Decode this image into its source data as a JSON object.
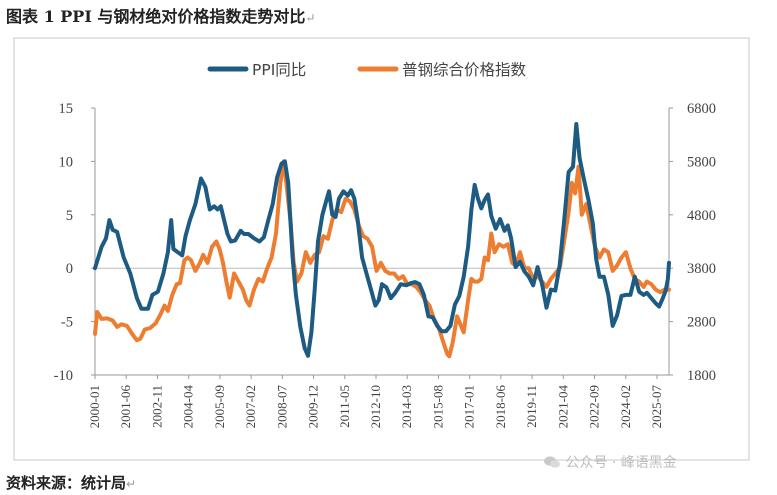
{
  "figure": {
    "title": "图表 1 PPI 与钢材绝对价格指数走势对比",
    "source": "资料来源：统计局",
    "return_mark": "↵",
    "watermark": "公众号 · 峰语黑金"
  },
  "colors": {
    "ppi": "#1d5b82",
    "steel": "#ed7d31",
    "frame": "#c8c8c8"
  },
  "chart_data": {
    "type": "line",
    "legend_position": "top",
    "grid": false,
    "x_tick_labels": [
      "2000-01",
      "2001-06",
      "2002-11",
      "2004-04",
      "2005-09",
      "2007-02",
      "2008-07",
      "2009-12",
      "2011-05",
      "2012-10",
      "2014-03",
      "2015-08",
      "2017-01",
      "2018-06",
      "2019-11",
      "2021-04",
      "2022-09",
      "2024-02",
      "2025-07"
    ],
    "x_range": [
      2000.0,
      2026.0
    ],
    "y_left": {
      "range": [
        -10,
        15
      ],
      "ticks": [
        "15",
        "10",
        "5",
        "0",
        "-5",
        "-10"
      ]
    },
    "y_right": {
      "range": [
        1800,
        6800
      ],
      "ticks": [
        "6800",
        "5800",
        "4800",
        "3800",
        "2800",
        "1800"
      ]
    },
    "series": [
      {
        "name": "PPI同比",
        "axis": "left",
        "points": [
          [
            2000.0,
            0.0
          ],
          [
            2000.3,
            2.0
          ],
          [
            2000.5,
            2.8
          ],
          [
            2000.65,
            4.5
          ],
          [
            2000.8,
            3.6
          ],
          [
            2001.0,
            3.4
          ],
          [
            2001.3,
            1.0
          ],
          [
            2001.6,
            -0.5
          ],
          [
            2001.9,
            -2.8
          ],
          [
            2002.1,
            -3.8
          ],
          [
            2002.4,
            -3.8
          ],
          [
            2002.6,
            -2.5
          ],
          [
            2002.85,
            -2.2
          ],
          [
            2003.1,
            -0.5
          ],
          [
            2003.3,
            1.5
          ],
          [
            2003.45,
            4.5
          ],
          [
            2003.55,
            1.8
          ],
          [
            2003.75,
            1.5
          ],
          [
            2003.95,
            1.2
          ],
          [
            2004.1,
            3.0
          ],
          [
            2004.3,
            4.5
          ],
          [
            2004.55,
            6.0
          ],
          [
            2004.8,
            8.4
          ],
          [
            2005.0,
            7.6
          ],
          [
            2005.2,
            5.5
          ],
          [
            2005.4,
            5.8
          ],
          [
            2005.55,
            5.5
          ],
          [
            2005.7,
            5.8
          ],
          [
            2005.85,
            4.5
          ],
          [
            2006.0,
            3.2
          ],
          [
            2006.15,
            2.5
          ],
          [
            2006.35,
            2.6
          ],
          [
            2006.6,
            3.5
          ],
          [
            2006.75,
            3.2
          ],
          [
            2006.95,
            3.2
          ],
          [
            2007.2,
            2.8
          ],
          [
            2007.45,
            2.5
          ],
          [
            2007.65,
            2.9
          ],
          [
            2007.85,
            4.5
          ],
          [
            2008.05,
            6.0
          ],
          [
            2008.25,
            8.5
          ],
          [
            2008.45,
            9.8
          ],
          [
            2008.6,
            10.0
          ],
          [
            2008.75,
            8.0
          ],
          [
            2008.85,
            4.5
          ],
          [
            2008.95,
            1.0
          ],
          [
            2009.1,
            -2.5
          ],
          [
            2009.3,
            -5.5
          ],
          [
            2009.5,
            -7.5
          ],
          [
            2009.65,
            -8.2
          ],
          [
            2009.8,
            -6.0
          ],
          [
            2009.95,
            -2.0
          ],
          [
            2010.1,
            2.5
          ],
          [
            2010.3,
            5.0
          ],
          [
            2010.5,
            6.5
          ],
          [
            2010.6,
            7.2
          ],
          [
            2010.75,
            5.0
          ],
          [
            2010.9,
            4.8
          ],
          [
            2011.05,
            6.5
          ],
          [
            2011.25,
            7.2
          ],
          [
            2011.45,
            6.8
          ],
          [
            2011.6,
            7.3
          ],
          [
            2011.75,
            6.5
          ],
          [
            2011.9,
            4.5
          ],
          [
            2012.1,
            1.0
          ],
          [
            2012.3,
            -0.5
          ],
          [
            2012.5,
            -2.0
          ],
          [
            2012.7,
            -3.5
          ],
          [
            2012.85,
            -3.0
          ],
          [
            2013.0,
            -1.5
          ],
          [
            2013.2,
            -1.8
          ],
          [
            2013.4,
            -2.8
          ],
          [
            2013.6,
            -2.3
          ],
          [
            2013.85,
            -1.5
          ],
          [
            2014.1,
            -1.6
          ],
          [
            2014.3,
            -1.4
          ],
          [
            2014.5,
            -1.3
          ],
          [
            2014.7,
            -1.5
          ],
          [
            2014.9,
            -2.5
          ],
          [
            2015.1,
            -4.5
          ],
          [
            2015.3,
            -4.6
          ],
          [
            2015.5,
            -5.4
          ],
          [
            2015.7,
            -5.9
          ],
          [
            2015.9,
            -5.9
          ],
          [
            2016.1,
            -5.4
          ],
          [
            2016.3,
            -3.4
          ],
          [
            2016.5,
            -2.6
          ],
          [
            2016.7,
            -0.8
          ],
          [
            2016.9,
            2.0
          ],
          [
            2017.05,
            5.5
          ],
          [
            2017.2,
            7.8
          ],
          [
            2017.35,
            6.5
          ],
          [
            2017.5,
            5.6
          ],
          [
            2017.65,
            6.4
          ],
          [
            2017.8,
            6.9
          ],
          [
            2017.95,
            4.9
          ],
          [
            2018.15,
            3.7
          ],
          [
            2018.35,
            4.6
          ],
          [
            2018.55,
            3.5
          ],
          [
            2018.7,
            4.0
          ],
          [
            2018.85,
            2.8
          ],
          [
            2019.05,
            0.1
          ],
          [
            2019.25,
            0.6
          ],
          [
            2019.45,
            -0.3
          ],
          [
            2019.65,
            -0.8
          ],
          [
            2019.85,
            -1.6
          ],
          [
            2020.05,
            0.1
          ],
          [
            2020.25,
            -1.5
          ],
          [
            2020.45,
            -3.7
          ],
          [
            2020.65,
            -2.0
          ],
          [
            2020.85,
            -2.1
          ],
          [
            2021.05,
            0.3
          ],
          [
            2021.25,
            4.4
          ],
          [
            2021.45,
            9.0
          ],
          [
            2021.65,
            9.5
          ],
          [
            2021.8,
            13.5
          ],
          [
            2021.95,
            10.3
          ],
          [
            2022.15,
            8.3
          ],
          [
            2022.35,
            6.4
          ],
          [
            2022.55,
            4.2
          ],
          [
            2022.7,
            0.9
          ],
          [
            2022.85,
            -0.8
          ],
          [
            2023.05,
            -0.8
          ],
          [
            2023.25,
            -2.5
          ],
          [
            2023.45,
            -5.4
          ],
          [
            2023.65,
            -4.4
          ],
          [
            2023.85,
            -2.6
          ],
          [
            2024.05,
            -2.5
          ],
          [
            2024.25,
            -2.5
          ],
          [
            2024.45,
            -0.8
          ],
          [
            2024.65,
            -2.2
          ],
          [
            2024.85,
            -2.5
          ],
          [
            2025.0,
            -2.3
          ],
          [
            2025.2,
            -2.8
          ],
          [
            2025.4,
            -3.3
          ],
          [
            2025.55,
            -3.6
          ],
          [
            2025.7,
            -2.9
          ],
          [
            2025.85,
            -2.1
          ],
          [
            2025.95,
            -1.0
          ],
          [
            2026.0,
            0.5
          ]
        ]
      },
      {
        "name": "普钢综合价格指数",
        "axis": "right",
        "points": [
          [
            2000.0,
            2570
          ],
          [
            2000.1,
            2980
          ],
          [
            2000.3,
            2850
          ],
          [
            2000.55,
            2860
          ],
          [
            2000.8,
            2820
          ],
          [
            2001.0,
            2700
          ],
          [
            2001.2,
            2750
          ],
          [
            2001.45,
            2720
          ],
          [
            2001.7,
            2560
          ],
          [
            2001.9,
            2450
          ],
          [
            2002.05,
            2480
          ],
          [
            2002.25,
            2650
          ],
          [
            2002.5,
            2680
          ],
          [
            2002.75,
            2770
          ],
          [
            2002.95,
            2920
          ],
          [
            2003.15,
            3100
          ],
          [
            2003.3,
            3000
          ],
          [
            2003.5,
            3300
          ],
          [
            2003.7,
            3500
          ],
          [
            2003.85,
            3520
          ],
          [
            2004.05,
            3950
          ],
          [
            2004.2,
            4000
          ],
          [
            2004.35,
            3950
          ],
          [
            2004.55,
            3750
          ],
          [
            2004.75,
            3900
          ],
          [
            2004.9,
            4050
          ],
          [
            2005.1,
            3900
          ],
          [
            2005.3,
            4200
          ],
          [
            2005.5,
            4300
          ],
          [
            2005.65,
            4150
          ],
          [
            2005.8,
            3900
          ],
          [
            2005.95,
            3550
          ],
          [
            2006.1,
            3250
          ],
          [
            2006.3,
            3700
          ],
          [
            2006.5,
            3550
          ],
          [
            2006.7,
            3400
          ],
          [
            2006.85,
            3200
          ],
          [
            2007.0,
            3100
          ],
          [
            2007.2,
            3400
          ],
          [
            2007.4,
            3600
          ],
          [
            2007.6,
            3550
          ],
          [
            2007.8,
            3800
          ],
          [
            2008.0,
            4000
          ],
          [
            2008.2,
            4450
          ],
          [
            2008.4,
            5400
          ],
          [
            2008.55,
            5800
          ],
          [
            2008.65,
            5450
          ],
          [
            2008.85,
            4700
          ],
          [
            2009.0,
            3900
          ],
          [
            2009.15,
            3550
          ],
          [
            2009.35,
            3700
          ],
          [
            2009.55,
            4100
          ],
          [
            2009.75,
            3900
          ],
          [
            2009.95,
            4050
          ],
          [
            2010.15,
            4100
          ],
          [
            2010.35,
            4400
          ],
          [
            2010.55,
            4350
          ],
          [
            2010.75,
            4700
          ],
          [
            2010.95,
            4900
          ],
          [
            2011.15,
            4850
          ],
          [
            2011.35,
            5100
          ],
          [
            2011.55,
            5050
          ],
          [
            2011.75,
            4900
          ],
          [
            2011.95,
            4600
          ],
          [
            2012.15,
            4400
          ],
          [
            2012.35,
            4350
          ],
          [
            2012.55,
            4200
          ],
          [
            2012.75,
            3750
          ],
          [
            2012.95,
            3900
          ],
          [
            2013.15,
            3750
          ],
          [
            2013.35,
            3700
          ],
          [
            2013.55,
            3700
          ],
          [
            2013.75,
            3600
          ],
          [
            2013.95,
            3650
          ],
          [
            2014.15,
            3500
          ],
          [
            2014.35,
            3500
          ],
          [
            2014.55,
            3450
          ],
          [
            2014.75,
            3350
          ],
          [
            2014.95,
            3200
          ],
          [
            2015.15,
            3100
          ],
          [
            2015.35,
            2850
          ],
          [
            2015.55,
            2700
          ],
          [
            2015.75,
            2450
          ],
          [
            2015.95,
            2200
          ],
          [
            2016.05,
            2150
          ],
          [
            2016.2,
            2400
          ],
          [
            2016.4,
            2900
          ],
          [
            2016.55,
            2750
          ],
          [
            2016.7,
            2600
          ],
          [
            2016.9,
            3200
          ],
          [
            2017.05,
            3600
          ],
          [
            2017.2,
            3550
          ],
          [
            2017.35,
            3550
          ],
          [
            2017.5,
            3600
          ],
          [
            2017.65,
            4000
          ],
          [
            2017.8,
            3950
          ],
          [
            2017.95,
            4450
          ],
          [
            2018.1,
            4100
          ],
          [
            2018.3,
            4250
          ],
          [
            2018.5,
            4200
          ],
          [
            2018.7,
            4250
          ],
          [
            2018.9,
            3900
          ],
          [
            2019.05,
            3850
          ],
          [
            2019.25,
            4100
          ],
          [
            2019.45,
            3800
          ],
          [
            2019.65,
            3800
          ],
          [
            2019.85,
            3600
          ],
          [
            2020.05,
            3650
          ],
          [
            2020.25,
            3550
          ],
          [
            2020.45,
            3450
          ],
          [
            2020.65,
            3600
          ],
          [
            2020.85,
            3700
          ],
          [
            2021.05,
            3800
          ],
          [
            2021.25,
            4300
          ],
          [
            2021.45,
            4850
          ],
          [
            2021.6,
            5400
          ],
          [
            2021.75,
            5200
          ],
          [
            2021.9,
            5700
          ],
          [
            2022.05,
            4800
          ],
          [
            2022.25,
            5000
          ],
          [
            2022.45,
            4600
          ],
          [
            2022.65,
            4200
          ],
          [
            2022.85,
            4000
          ],
          [
            2023.05,
            4150
          ],
          [
            2023.25,
            4100
          ],
          [
            2023.45,
            3750
          ],
          [
            2023.65,
            3850
          ],
          [
            2023.85,
            4000
          ],
          [
            2024.05,
            4100
          ],
          [
            2024.25,
            3800
          ],
          [
            2024.45,
            3600
          ],
          [
            2024.65,
            3550
          ],
          [
            2024.85,
            3450
          ],
          [
            2025.0,
            3550
          ],
          [
            2025.2,
            3500
          ],
          [
            2025.4,
            3400
          ],
          [
            2025.6,
            3350
          ],
          [
            2025.8,
            3400
          ],
          [
            2026.0,
            3400
          ]
        ]
      }
    ]
  }
}
